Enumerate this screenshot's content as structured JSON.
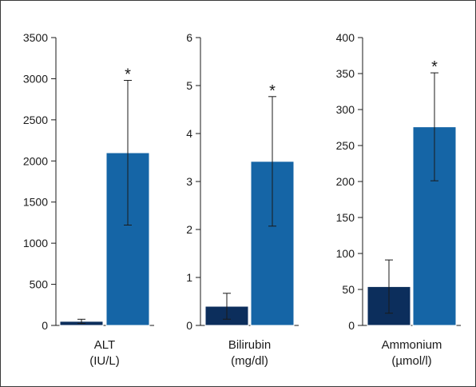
{
  "chart_data": [
    {
      "type": "bar",
      "category_label": [
        "ALT",
        "(IU/L)"
      ],
      "ylim": [
        0,
        3500
      ],
      "yticks": [
        0,
        500,
        1000,
        1500,
        2000,
        2500,
        3000,
        3500
      ],
      "values": [
        50,
        2100
      ],
      "errors": [
        25,
        880
      ],
      "significance": [
        "",
        "*"
      ],
      "colors": [
        "#0c2e5c",
        "#1565a6"
      ]
    },
    {
      "type": "bar",
      "category_label": [
        "Bilirubin",
        "(mg/dl)"
      ],
      "ylim": [
        0,
        6
      ],
      "yticks": [
        0,
        1,
        2,
        3,
        4,
        5,
        6
      ],
      "values": [
        0.4,
        3.42
      ],
      "errors": [
        0.27,
        1.35
      ],
      "significance": [
        "",
        "*"
      ],
      "colors": [
        "#0c2e5c",
        "#1565a6"
      ]
    },
    {
      "type": "bar",
      "category_label": [
        "Ammonium",
        "(µmol/l)"
      ],
      "ylim": [
        0,
        400
      ],
      "yticks": [
        0,
        50,
        100,
        150,
        200,
        250,
        300,
        350,
        400
      ],
      "values": [
        54,
        276
      ],
      "errors": [
        37,
        75
      ],
      "significance": [
        "",
        "*"
      ],
      "colors": [
        "#0c2e5c",
        "#1565a6"
      ]
    }
  ]
}
